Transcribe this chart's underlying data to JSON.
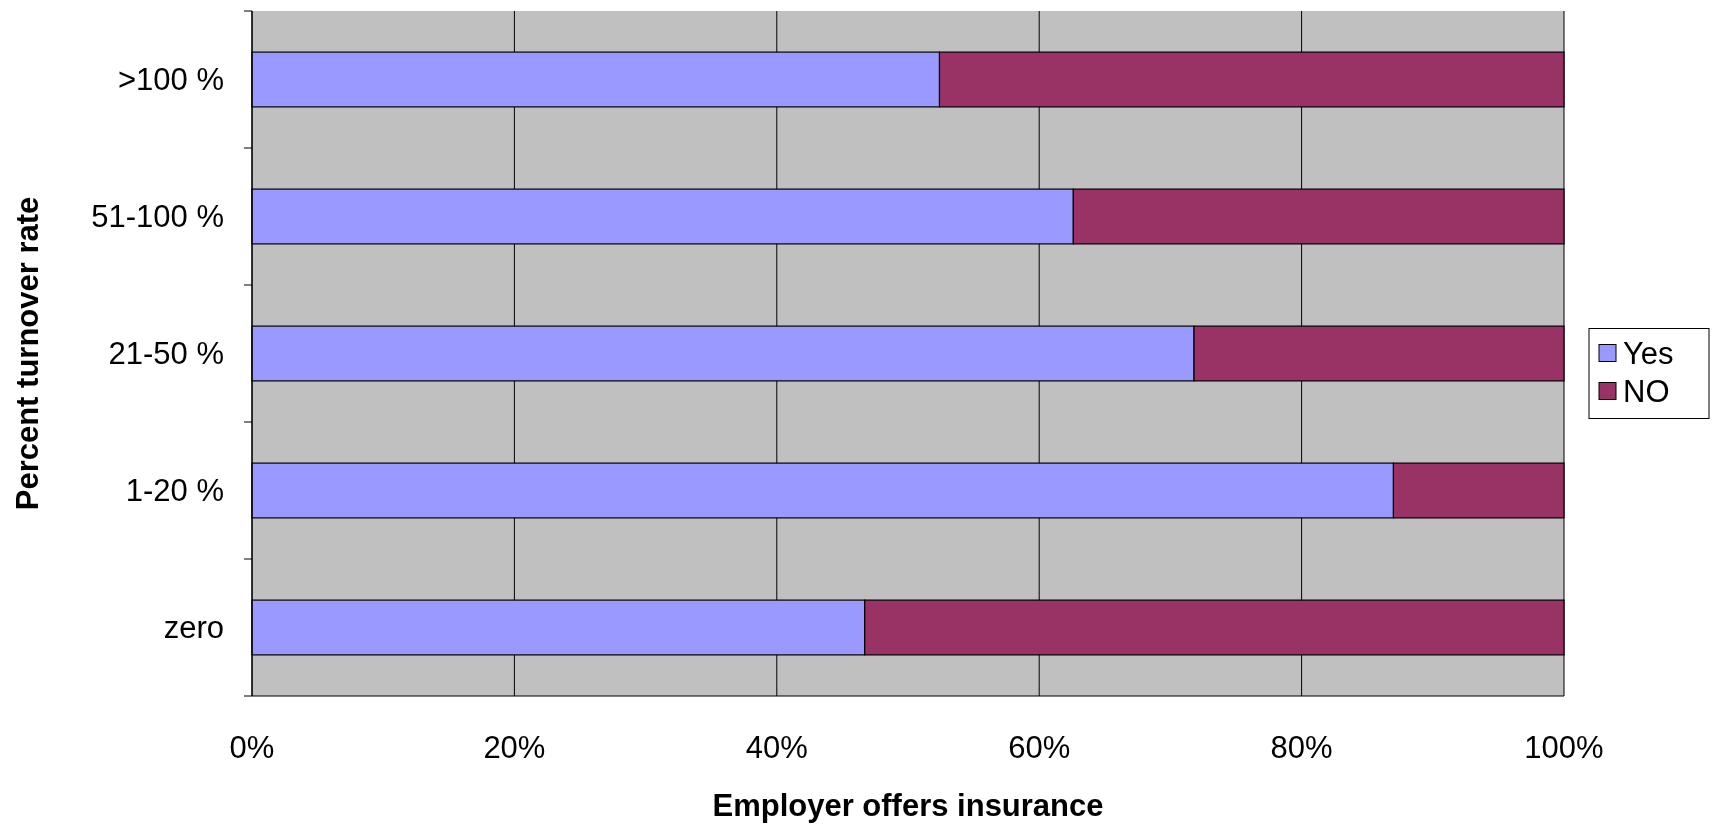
{
  "chart_data": {
    "type": "bar",
    "orientation": "horizontal",
    "stacked": true,
    "xlabel": "Employer offers insurance",
    "ylabel": "Percent turnover rate",
    "categories": [
      ">100 %",
      "51-100 %",
      "21-50 %",
      "1-20 %",
      "zero"
    ],
    "series": [
      {
        "name": "Yes",
        "color": "#9999ff",
        "values": [
          52.4,
          62.6,
          71.8,
          87.0,
          46.7
        ]
      },
      {
        "name": "NO",
        "color": "#993366",
        "values": [
          47.6,
          37.4,
          28.2,
          13.0,
          53.3
        ]
      }
    ],
    "xlim": [
      0,
      100
    ],
    "xticks": [
      {
        "value": 0,
        "label": "0%"
      },
      {
        "value": 20,
        "label": "20%"
      },
      {
        "value": 40,
        "label": "40%"
      },
      {
        "value": 60,
        "label": "60%"
      },
      {
        "value": 80,
        "label": "80%"
      },
      {
        "value": 100,
        "label": "100%"
      }
    ],
    "grid": "x",
    "legend": "right"
  }
}
